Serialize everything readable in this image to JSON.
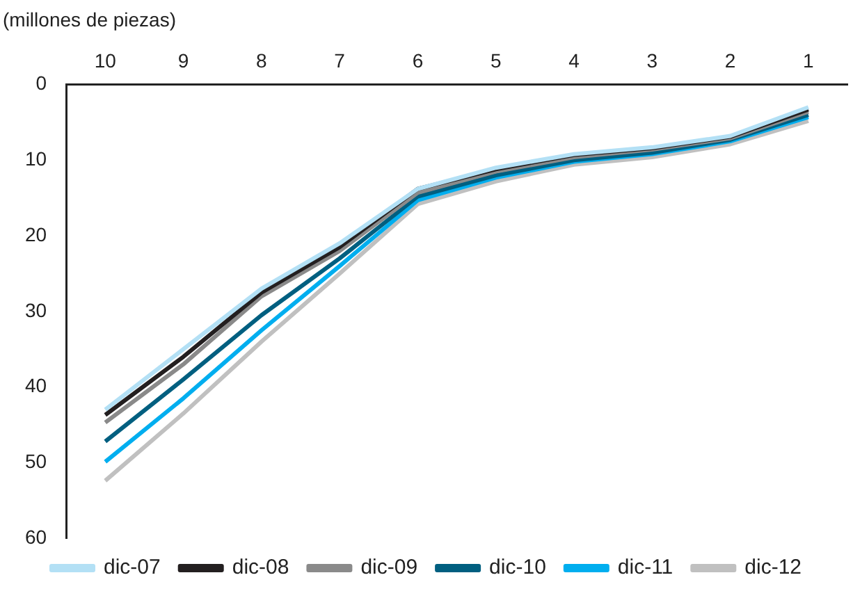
{
  "chart_data": {
    "type": "line",
    "ylabel": "(millones de piezas)",
    "categories": [
      "10",
      "9",
      "8",
      "7",
      "6",
      "5",
      "4",
      "3",
      "2",
      "1"
    ],
    "series": [
      {
        "name": "dic-07",
        "color": "#b3e0f5",
        "values": [
          43,
          35,
          27,
          21,
          13.8,
          11,
          9.2,
          8.3,
          6.8,
          3
        ]
      },
      {
        "name": "dic-08",
        "color": "#231f20",
        "values": [
          43.7,
          36,
          27.5,
          21.5,
          13.8,
          11.2,
          9.3,
          8.4,
          6.9,
          3.3
        ]
      },
      {
        "name": "dic-09",
        "color": "#8a8a8a",
        "values": [
          44.7,
          37,
          28,
          22,
          14.3,
          11.5,
          9.6,
          8.6,
          7.1,
          3.6
        ]
      },
      {
        "name": "dic-10",
        "color": "#005f80",
        "values": [
          47.2,
          39,
          30.5,
          23,
          14.8,
          12,
          10,
          9,
          7.3,
          4
        ]
      },
      {
        "name": "dic-11",
        "color": "#00aeef",
        "values": [
          49.9,
          41.5,
          32.5,
          24,
          15.3,
          12.3,
          10.2,
          9.2,
          7.5,
          4.3
        ]
      },
      {
        "name": "dic-12",
        "color": "#c0c0c0",
        "values": [
          52.4,
          43.5,
          34,
          25,
          15.8,
          12.8,
          10.6,
          9.6,
          7.9,
          4.8
        ]
      }
    ],
    "ylim": [
      60,
      0
    ],
    "yticks": [
      0,
      10,
      20,
      30,
      40,
      50,
      60
    ],
    "grid": false,
    "legend": "bottom",
    "marker": "none",
    "line_style": "solid"
  }
}
